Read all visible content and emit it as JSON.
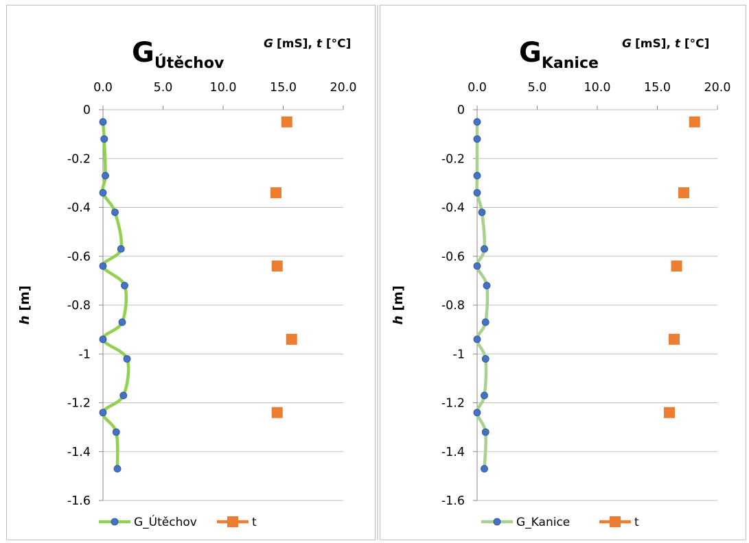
{
  "chart_data": [
    {
      "type": "scatter",
      "title": "G",
      "title_subscript": "Útěchov",
      "x_units": "[mS], ",
      "x_units_2": " [°C]",
      "x_var_1": "G",
      "x_var_2": "t",
      "ylabel_var": "h",
      "ylabel_unit": " [m]",
      "xlim": [
        0,
        20
      ],
      "ylim": [
        -1.6,
        0
      ],
      "xticks": [
        "0.0",
        "5.0",
        "10.0",
        "15.0",
        "20.0"
      ],
      "yticks": [
        "0",
        "-0.2",
        "-0.4",
        "-0.6",
        "-0.8",
        "-1",
        "-1.2",
        "-1.4",
        "-1.6"
      ],
      "grid": "horizontal",
      "legend": "bottom",
      "series": [
        {
          "name": "G_Útěchov",
          "style": "smooth-line-with-markers",
          "line_color": "#92d050",
          "marker_color": "#4472c4",
          "x": [
            0.0,
            0.1,
            0.2,
            0.0,
            1.0,
            1.5,
            0.0,
            1.8,
            1.6,
            0.0,
            2.0,
            1.7,
            0.0,
            1.1,
            1.2
          ],
          "y": [
            -0.05,
            -0.12,
            -0.27,
            -0.34,
            -0.42,
            -0.57,
            -0.64,
            -0.72,
            -0.87,
            -0.94,
            -1.02,
            -1.17,
            -1.24,
            -1.32,
            -1.47
          ]
        },
        {
          "name": "t",
          "style": "markers-square",
          "marker_color": "#ed7d31",
          "x": [
            15.3,
            14.4,
            14.5,
            15.7,
            14.5
          ],
          "y": [
            -0.05,
            -0.34,
            -0.64,
            -0.94,
            -1.24
          ]
        }
      ]
    },
    {
      "type": "scatter",
      "title": "G",
      "title_subscript": "Kanice",
      "x_units": "[mS], ",
      "x_units_2": " [°C]",
      "x_var_1": "G",
      "x_var_2": "t",
      "ylabel_var": "h",
      "ylabel_unit": " [m]",
      "xlim": [
        0,
        20
      ],
      "ylim": [
        -1.6,
        0
      ],
      "xticks": [
        "0.0",
        "5.0",
        "10.0",
        "15.0",
        "20.0"
      ],
      "yticks": [
        "0",
        "-0.2",
        "-0.4",
        "-0.6",
        "-0.8",
        "-1",
        "-1.2",
        "-1.4",
        "-1.6"
      ],
      "grid": "horizontal",
      "legend": "bottom",
      "series": [
        {
          "name": "G_Kanice",
          "style": "smooth-line-with-markers",
          "line_color": "#a9d18e",
          "marker_color": "#4472c4",
          "x": [
            0.0,
            0.0,
            0.0,
            0.0,
            0.4,
            0.6,
            0.0,
            0.8,
            0.7,
            0.0,
            0.7,
            0.6,
            0.0,
            0.7,
            0.6
          ],
          "y": [
            -0.05,
            -0.12,
            -0.27,
            -0.34,
            -0.42,
            -0.57,
            -0.64,
            -0.72,
            -0.87,
            -0.94,
            -1.02,
            -1.17,
            -1.24,
            -1.32,
            -1.47
          ]
        },
        {
          "name": "t",
          "style": "markers-square",
          "marker_color": "#ed7d31",
          "x": [
            18.1,
            17.2,
            16.6,
            16.4,
            16.0
          ],
          "y": [
            -0.05,
            -0.34,
            -0.64,
            -0.94,
            -1.24
          ]
        }
      ]
    }
  ]
}
